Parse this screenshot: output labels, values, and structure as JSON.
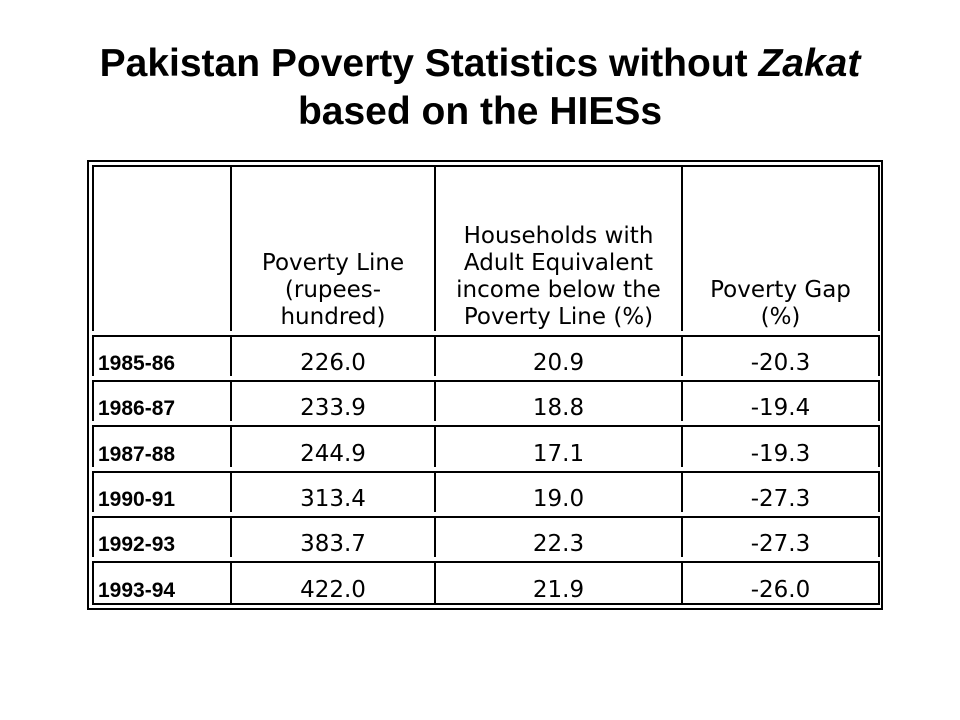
{
  "title": {
    "line1_prefix": "Pakistan Poverty Statistics without ",
    "line1_italic": "Zakat",
    "line2": "based on the HIESs"
  },
  "table": {
    "headers": [
      "",
      "Poverty Line (rupees-hundred)",
      "Households with Adult Equivalent income below the Poverty Line (%)",
      "Poverty Gap (%)"
    ],
    "rows": [
      [
        "1985-86",
        "226.0",
        "20.9",
        "-20.3"
      ],
      [
        "1986-87",
        "233.9",
        "18.8",
        "-19.4"
      ],
      [
        "1987-88",
        "244.9",
        "17.1",
        "-19.3"
      ],
      [
        "1990-91",
        "313.4",
        "19.0",
        "-27.3"
      ],
      [
        "1992-93",
        "383.7",
        "22.3",
        "-27.3"
      ],
      [
        "1993-94",
        "422.0",
        "21.9",
        "-26.0"
      ]
    ]
  }
}
